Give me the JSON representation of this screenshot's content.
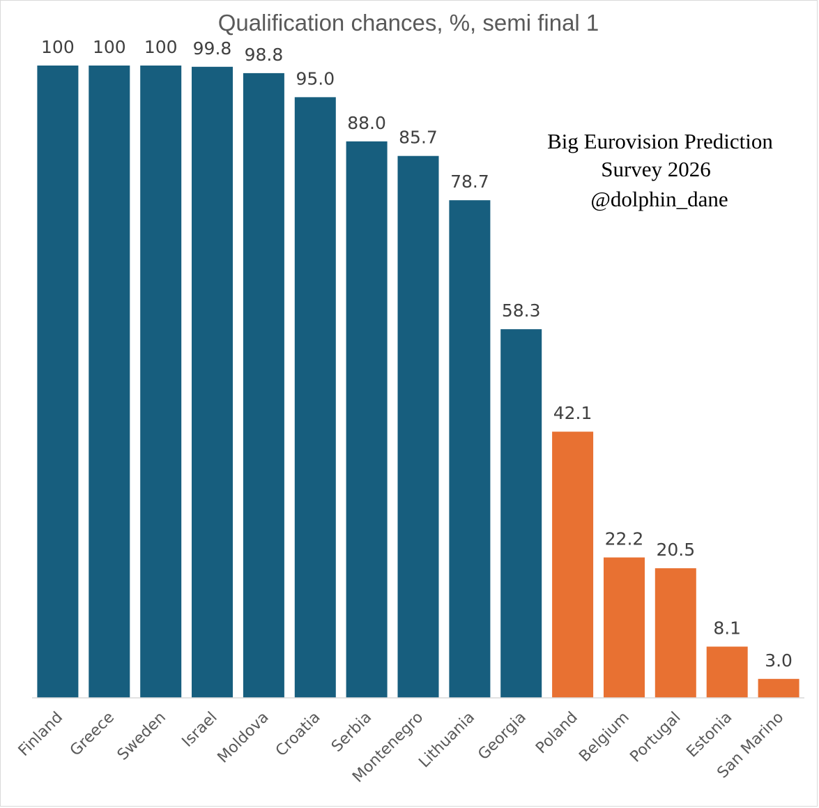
{
  "chart_data": {
    "type": "bar",
    "title": "Qualification chances, %, semi final 1",
    "xlabel": "",
    "ylabel": "",
    "ylim": [
      0,
      100
    ],
    "grid": false,
    "legend": "none",
    "categories": [
      "Finland",
      "Greece",
      "Sweden",
      "Israel",
      "Moldova",
      "Croatia",
      "Serbia",
      "Montenegro",
      "Lithuania",
      "Georgia",
      "Poland",
      "Belgium",
      "Portugal",
      "Estonia",
      "San Marino"
    ],
    "values": [
      100,
      100,
      100,
      99.8,
      98.8,
      95.0,
      88.0,
      85.7,
      78.7,
      58.3,
      42.1,
      22.2,
      20.5,
      8.1,
      3.0
    ],
    "data_labels": [
      "100",
      "100",
      "100",
      "99.8",
      "98.8",
      "95.0",
      "88.0",
      "85.7",
      "78.7",
      "58.3",
      "42.1",
      "22.2",
      "20.5",
      "8.1",
      "3.0"
    ],
    "bar_colors": [
      "#175e7e",
      "#175e7e",
      "#175e7e",
      "#175e7e",
      "#175e7e",
      "#175e7e",
      "#175e7e",
      "#175e7e",
      "#175e7e",
      "#175e7e",
      "#e87132",
      "#e87132",
      "#e87132",
      "#e87132",
      "#e87132"
    ],
    "annotation": [
      "Big Eurovision Prediction",
      "Survey 2026",
      "@dolphin_dane"
    ]
  },
  "colors": {
    "qualify": "#175e7e",
    "non_qualify": "#e87132",
    "axis": "#d9d9d9"
  }
}
